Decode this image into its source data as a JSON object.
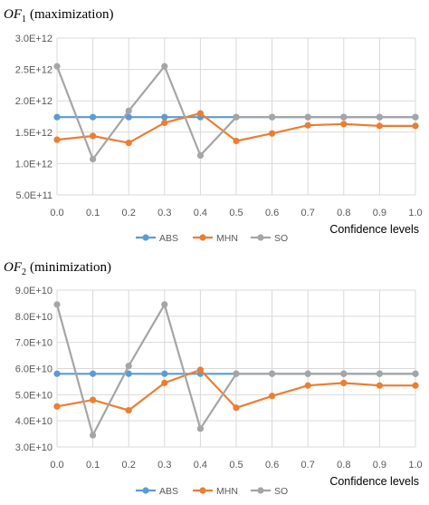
{
  "chart_data": [
    {
      "type": "line",
      "title_var": "OF",
      "title_sub": "1",
      "title_rest": "(maximization)",
      "xlabel": "Confidence levels",
      "x": [
        "0.0",
        "0.1",
        "0.2",
        "0.3",
        "0.4",
        "0.5",
        "0.6",
        "0.7",
        "0.8",
        "0.9",
        "1.0"
      ],
      "ylim": [
        500000000000.0,
        3000000000000.0
      ],
      "yticks": [
        500000000000.0,
        1000000000000.0,
        1500000000000.0,
        2000000000000.0,
        2500000000000.0,
        3000000000000.0
      ],
      "ytick_labels": [
        "5.0E+11",
        "1.0E+12",
        "1.5E+12",
        "2.0E+12",
        "2.5E+12",
        "3.0E+12"
      ],
      "grid": "horizontal",
      "legend_position": "bottom",
      "series": [
        {
          "name": "ABS",
          "color": "#5B9BD5",
          "values": [
            1740000000000.0,
            1740000000000.0,
            1740000000000.0,
            1740000000000.0,
            1740000000000.0,
            1740000000000.0,
            1740000000000.0,
            1740000000000.0,
            1740000000000.0,
            1740000000000.0,
            1740000000000.0
          ]
        },
        {
          "name": "MHN",
          "color": "#ED7D31",
          "values": [
            1380000000000.0,
            1440000000000.0,
            1330000000000.0,
            1650000000000.0,
            1800000000000.0,
            1360000000000.0,
            1480000000000.0,
            1610000000000.0,
            1630000000000.0,
            1600000000000.0,
            1600000000000.0
          ]
        },
        {
          "name": "SO",
          "color": "#A5A5A5",
          "values": [
            2550000000000.0,
            1070000000000.0,
            1840000000000.0,
            2550000000000.0,
            1130000000000.0,
            1740000000000.0,
            1740000000000.0,
            1740000000000.0,
            1740000000000.0,
            1740000000000.0,
            1740000000000.0
          ]
        }
      ]
    },
    {
      "type": "line",
      "title_var": "OF",
      "title_sub": "2",
      "title_rest": "(minimization)",
      "xlabel": "Confidence levels",
      "x": [
        "0.0",
        "0.1",
        "0.2",
        "0.3",
        "0.4",
        "0.5",
        "0.6",
        "0.7",
        "0.8",
        "0.9",
        "1.0"
      ],
      "ylim": [
        30000000000.0,
        90000000000.0
      ],
      "yticks": [
        30000000000.0,
        40000000000.0,
        50000000000.0,
        60000000000.0,
        70000000000.0,
        80000000000.0,
        90000000000.0
      ],
      "ytick_labels": [
        "3.0E+10",
        "4.0E+10",
        "5.0E+10",
        "6.0E+10",
        "7.0E+10",
        "8.0E+10",
        "9.0E+10"
      ],
      "grid": "horizontal",
      "legend_position": "bottom",
      "series": [
        {
          "name": "ABS",
          "color": "#5B9BD5",
          "values": [
            58000000000.0,
            58000000000.0,
            58000000000.0,
            58000000000.0,
            58000000000.0,
            58000000000.0,
            58000000000.0,
            58000000000.0,
            58000000000.0,
            58000000000.0,
            58000000000.0
          ]
        },
        {
          "name": "MHN",
          "color": "#ED7D31",
          "values": [
            45500000000.0,
            48000000000.0,
            44000000000.0,
            54500000000.0,
            59500000000.0,
            45000000000.0,
            49500000000.0,
            53500000000.0,
            54500000000.0,
            53500000000.0,
            53500000000.0
          ]
        },
        {
          "name": "SO",
          "color": "#A5A5A5",
          "values": [
            84500000000.0,
            34500000000.0,
            61000000000.0,
            84500000000.0,
            37000000000.0,
            58000000000.0,
            58000000000.0,
            58000000000.0,
            58000000000.0,
            58000000000.0,
            58000000000.0
          ]
        }
      ]
    }
  ]
}
